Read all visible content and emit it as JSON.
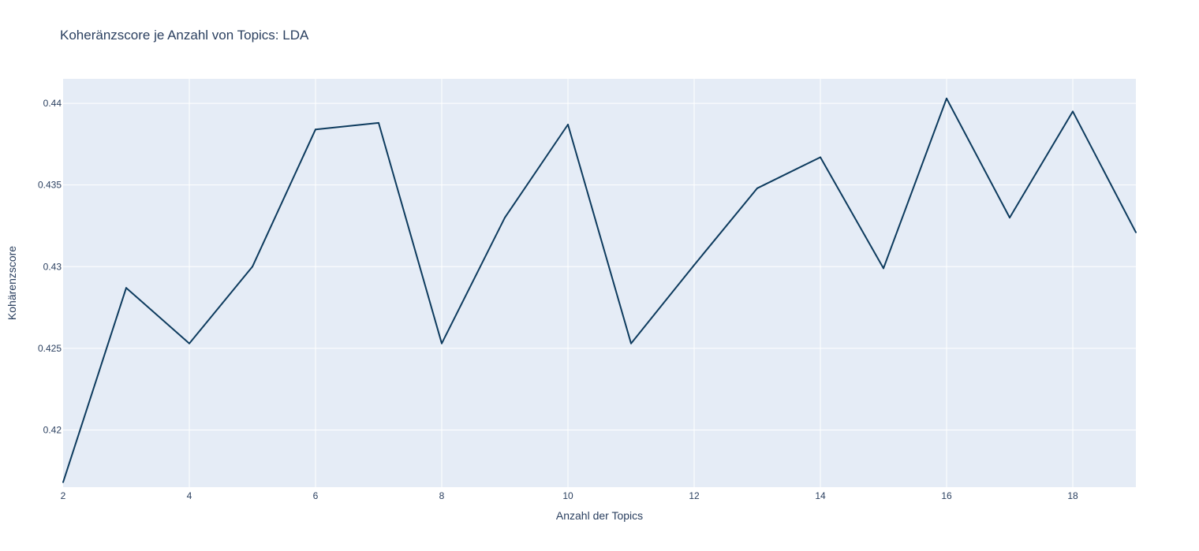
{
  "chart_data": {
    "type": "line",
    "title": "Koheränzscore je Anzahl von Topics: LDA",
    "xlabel": "Anzahl der Topics",
    "ylabel": "Kohärenzscore",
    "xlim": [
      2,
      19
    ],
    "ylim": [
      0.4165,
      0.4415
    ],
    "x_ticks": [
      2,
      4,
      6,
      8,
      10,
      12,
      14,
      16,
      18
    ],
    "x_tick_labels": [
      "2",
      "4",
      "6",
      "8",
      "10",
      "12",
      "14",
      "16",
      "18"
    ],
    "y_ticks": [
      0.42,
      0.425,
      0.43,
      0.435,
      0.44
    ],
    "y_tick_labels": [
      "0.42",
      "0.425",
      "0.43",
      "0.435",
      "0.44"
    ],
    "grid": true,
    "colors": {
      "plot_background": "#e5ecf6",
      "line": "#0d3b5e"
    },
    "series": [
      {
        "x": [
          2,
          3,
          4,
          5,
          6,
          7,
          8,
          9,
          10,
          11,
          12,
          13,
          14,
          15,
          16,
          17,
          18,
          19
        ],
        "values": [
          0.4168,
          0.4287,
          0.4253,
          0.43,
          0.4384,
          0.4388,
          0.4253,
          0.433,
          0.4387,
          0.4253,
          0.4301,
          0.4348,
          0.4367,
          0.4299,
          0.4403,
          0.433,
          0.4395,
          0.4321
        ]
      }
    ]
  }
}
